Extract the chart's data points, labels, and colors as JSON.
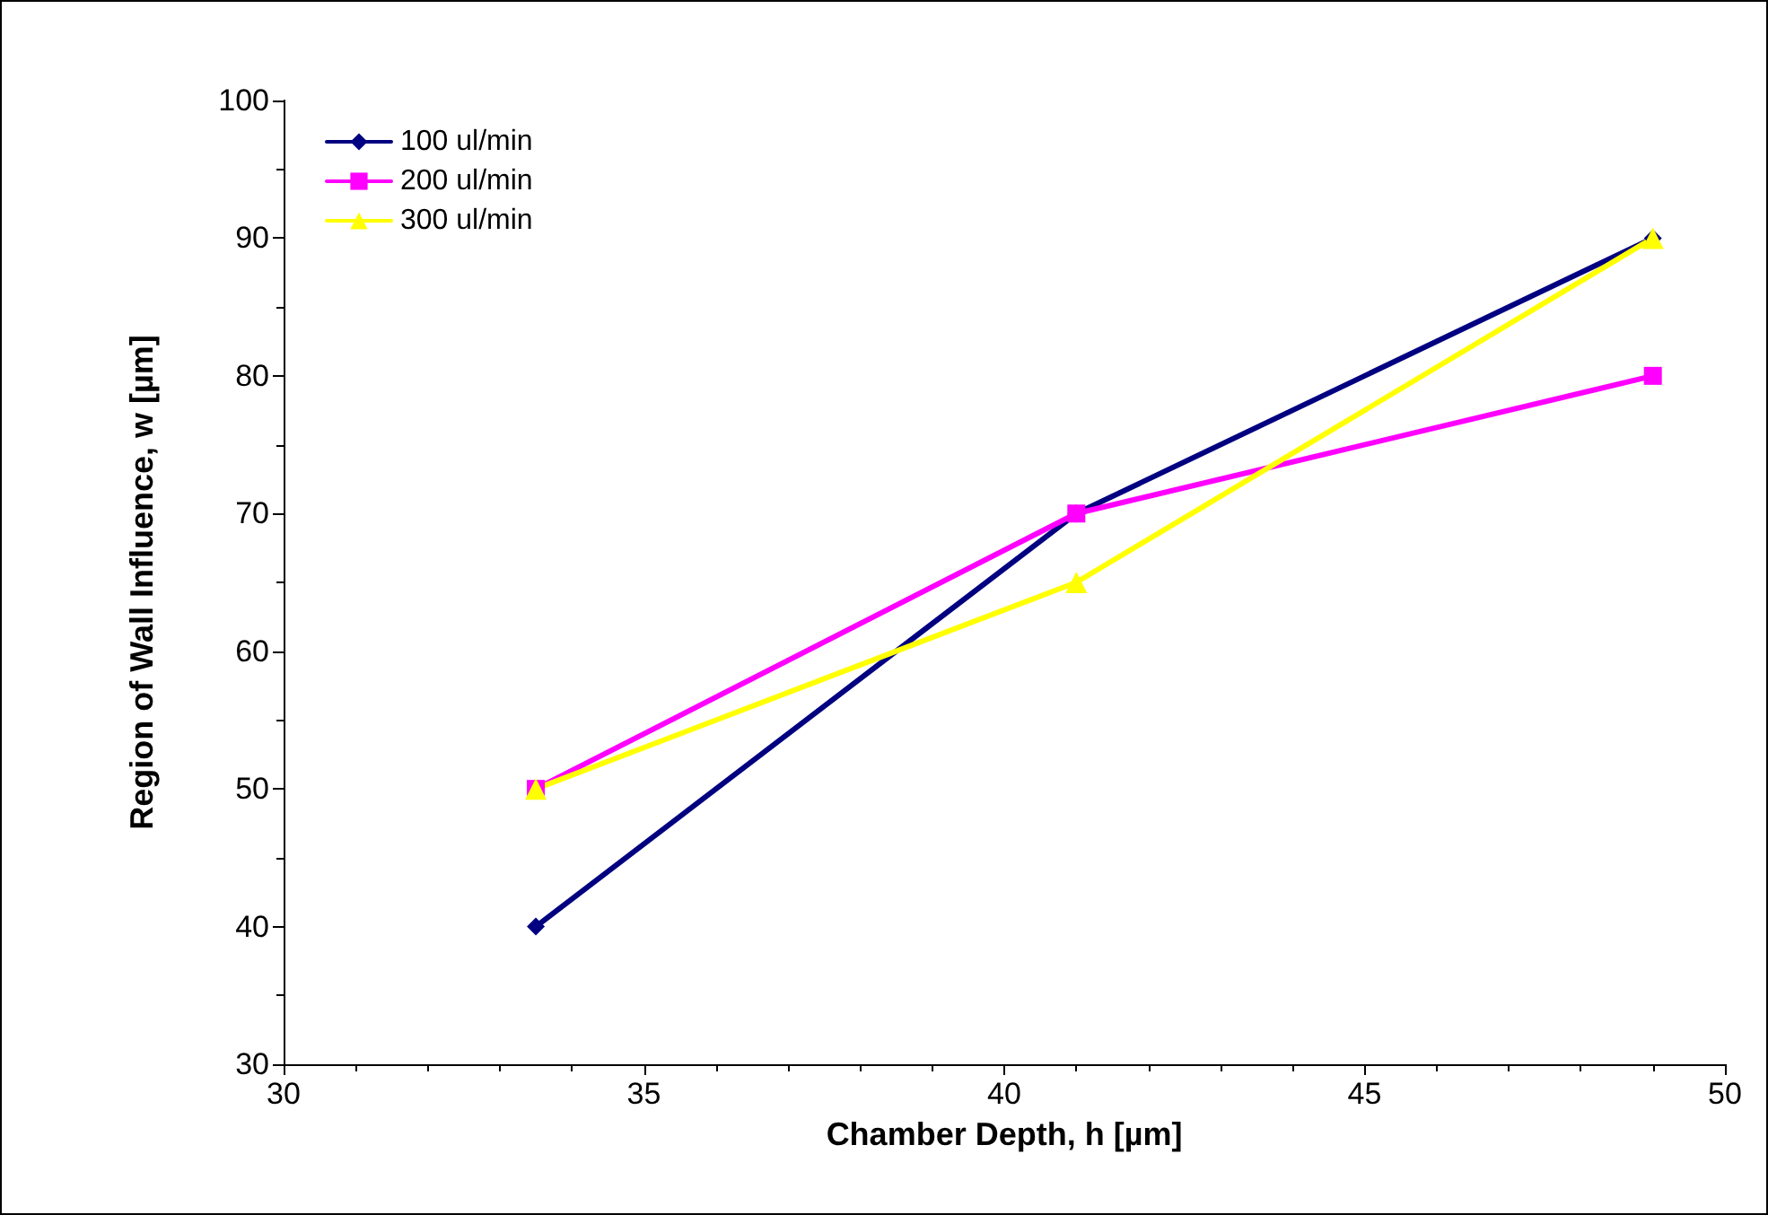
{
  "chart_data": {
    "type": "line",
    "xlabel": "Chamber Depth, h [µm]",
    "ylabel": "Region of Wall Influence, w [µm]",
    "x": [
      33.5,
      41,
      49
    ],
    "series": [
      {
        "name": "100 ul/min",
        "color": "#000080",
        "marker": "diamond",
        "values": [
          40,
          70,
          90
        ]
      },
      {
        "name": "200 ul/min",
        "color": "#ff00ff",
        "marker": "square",
        "values": [
          50,
          70,
          80
        ]
      },
      {
        "name": "300 ul/min",
        "color": "#ffff00",
        "marker": "triangle",
        "values": [
          50,
          65,
          90
        ]
      }
    ],
    "xlim": [
      30,
      50
    ],
    "xticks": [
      30,
      35,
      40,
      45,
      50
    ],
    "ylim": [
      30,
      100
    ],
    "yticks": [
      30,
      40,
      50,
      60,
      70,
      80,
      90,
      100
    ],
    "grid": false,
    "legend": "top left",
    "line_style": "solid"
  }
}
